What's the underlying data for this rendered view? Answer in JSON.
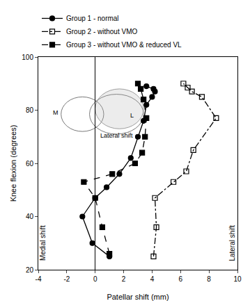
{
  "chart_data": {
    "type": "line",
    "x_label": "Patellar shift (mm)",
    "y_label": "Knee flexion (degrees)",
    "xlim": [
      -4,
      10
    ],
    "xticks": [
      -4,
      -2,
      0,
      2,
      4,
      6,
      8,
      10
    ],
    "ylim": [
      20,
      100
    ],
    "yticks": [
      20,
      40,
      60,
      80,
      100
    ],
    "grid": false,
    "legend": "upper left",
    "annotations": [
      "M",
      "L",
      "Lateral shift",
      "Medial shift",
      "Lateral shift"
    ],
    "series": [
      {
        "name": "Group 1 - normal",
        "color": "#000000",
        "marker": "circle",
        "line_style": "solid",
        "x": [
          1.0,
          -0.2,
          -0.9,
          0.0,
          0.8,
          1.7,
          2.5,
          3.0,
          3.4,
          3.6,
          4.0,
          4.2,
          4.1,
          3.6
        ],
        "values": [
          25,
          30,
          40,
          47,
          51,
          56,
          62,
          70,
          76,
          82,
          85,
          87,
          88,
          89
        ]
      },
      {
        "name": "Group 2 - without VMO",
        "color": "#000000",
        "marker": "square-open",
        "line_style": "dashdot",
        "x": [
          4.1,
          4.3,
          4.2,
          5.5,
          6.4,
          6.9,
          8.5,
          7.5,
          6.8,
          6.5,
          6.2
        ],
        "values": [
          25,
          36,
          47,
          53,
          57,
          65,
          77,
          85,
          87,
          88.5,
          90
        ]
      },
      {
        "name": "Group 3 - without VMO & reduced VL",
        "color": "#000000",
        "marker": "square",
        "line_style": "dash",
        "x": [
          1.0,
          0.5,
          0.0,
          -0.8,
          1.2,
          2.8,
          3.3,
          3.5,
          3.6,
          3.4,
          3.2,
          3.0
        ],
        "values": [
          26,
          36,
          47,
          53,
          56,
          60,
          64,
          70,
          77,
          84,
          88,
          90
        ]
      }
    ]
  }
}
